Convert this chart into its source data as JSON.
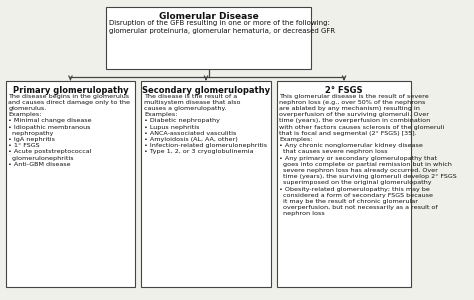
{
  "bg_color": "#f0f0eb",
  "box_color": "#ffffff",
  "border_color": "#444444",
  "text_color": "#111111",
  "top_box": {
    "title": "Glomerular Disease",
    "body": "Disruption of the GFB resulting in one or more of the following:\nglomerular proteinuria, glomerular hematuria, or decreased GFR"
  },
  "left_box": {
    "title": "Primary glomerulopathy",
    "body": "The disease begins in the glomerulus\nand causes direct damage only to the\nglomerulus.\nExamples:\n• Minimal change disease\n• Idiopathic membranous\n  nephropathy\n• IgA nephritis\n• 1° FSGS\n• Acute poststreptococcal\n  glomerulonephritis\n• Anti-GBM disease"
  },
  "mid_box": {
    "title": "Secondary glomerulopathy",
    "body": "The disease is the result of a\nmultisystem disease that also\ncauses a glomerulopathy.\nExamples:\n• Diabetic nephropathy\n• Lupus nephritis\n• ANCA-associated vasculitis\n• Amyloidosis (AL, AA, other)\n• Infection-related glomerulonephritis\n• Type 1, 2, or 3 cryoglobulinemia"
  },
  "right_box": {
    "title": "2° FSGS",
    "body": "This glomerular disease is the result of severe\nnephron loss (e.g., over 50% of the nephrons\nare ablated by any mechanism) resulting in\noverperfusion of the surviving glomeruli. Over\ntime (years), the overperfusion in combination\nwith other factors causes sclerosis of the glomeruli\nthat is focal and segmental (2° FSGS) [35].\nExamples:\n• Any chronic nonglomerular kidney disease\n  that causes severe nephron loss\n• Any primary or secondary glomerulopathy that\n  goes into complete or partial remission but in which\n  severe nephron loss has already occurred. Over\n  time (years), the surviving glomeruli develop 2° FSGS\n  superimposed on the original glomerulopathy\n• Obesity-related glomerulopathy; this may be\n  considered a form of secondary FSGS because\n  it may be the result of chronic glomerular\n  overperfusion, but not necessarily as a result of\n  nephron loss"
  }
}
